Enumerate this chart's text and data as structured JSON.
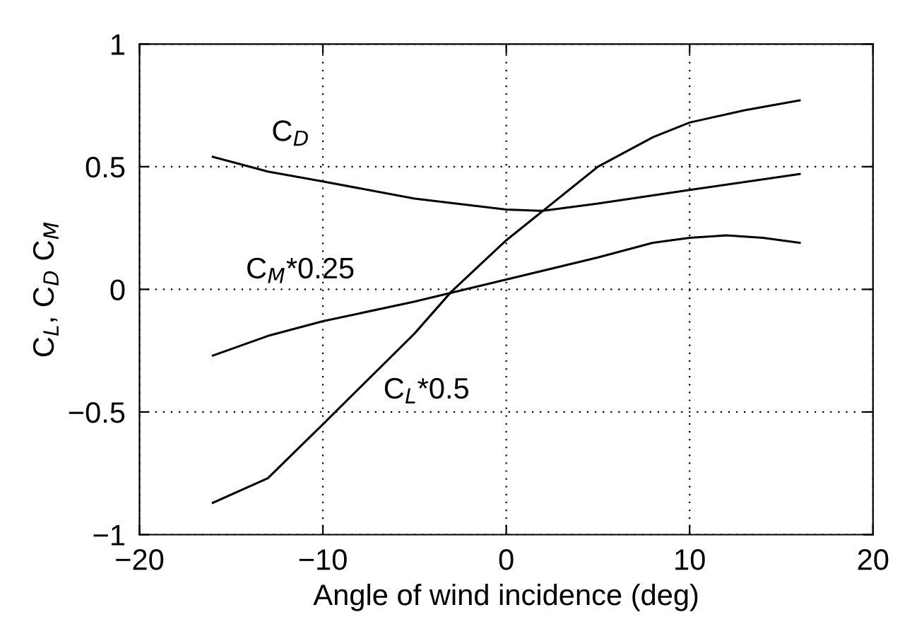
{
  "chart_data": {
    "type": "line",
    "xlabel": "Angle of wind incidence (deg)",
    "ylabel": "C$_{L}$, C$_{D}$ C$_{M}$",
    "xlim": [
      -20,
      20
    ],
    "ylim": [
      -1,
      1
    ],
    "xticks": [
      {
        "value": -20,
        "label": "−20"
      },
      {
        "value": -10,
        "label": "−10"
      },
      0,
      10,
      20
    ],
    "yticks": [
      {
        "value": -1,
        "label": "−1"
      },
      {
        "value": -0.5,
        "label": "−0.5"
      },
      0,
      0.5,
      1
    ],
    "grid": true,
    "line_style": "solid",
    "marker": "none",
    "series": [
      {
        "name": "C$_{D}$",
        "color": "#000000",
        "x": [
          -16,
          -13,
          -10,
          -5,
          0,
          2,
          5,
          10,
          16
        ],
        "values": [
          0.54,
          0.48,
          0.44,
          0.37,
          0.325,
          0.32,
          0.35,
          0.405,
          0.47
        ]
      },
      {
        "name": "C$_{M}$*0.25",
        "color": "#000000",
        "x": [
          -16,
          -13,
          -10,
          -5,
          0,
          5,
          8,
          10,
          12,
          14,
          16
        ],
        "values": [
          -0.27,
          -0.19,
          -0.13,
          -0.05,
          0.04,
          0.13,
          0.19,
          0.21,
          0.22,
          0.21,
          0.19
        ]
      },
      {
        "name": "C$_{L}$*0.5",
        "color": "#000000",
        "x": [
          -16,
          -13,
          -10,
          -5,
          -3,
          0,
          2,
          5,
          8,
          10,
          13,
          16
        ],
        "values": [
          -0.87,
          -0.77,
          -0.55,
          -0.18,
          -0.01,
          0.2,
          0.32,
          0.5,
          0.62,
          0.68,
          0.73,
          0.77
        ]
      }
    ]
  }
}
